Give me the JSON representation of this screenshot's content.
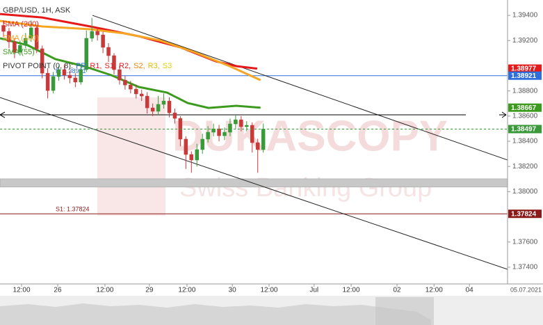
{
  "chart_data": {
    "type": "candlestick",
    "title": "GBP/USD, 1H, ASK",
    "watermark": {
      "title": "DUKASCOPY",
      "subtitle": "Swiss Banking Group"
    },
    "up_color": "#3a9a3a",
    "down_color": "#c83a3a",
    "open": [
      1.3932,
      1.39273,
      1.3919,
      1.39107,
      1.39162,
      1.39218,
      1.39301,
      1.39135,
      1.38941,
      1.38803,
      1.38914,
      1.38969,
      1.38925,
      1.38903,
      1.3887,
      1.38969,
      1.39218,
      1.39273,
      1.39245,
      1.39146,
      1.3908,
      1.38969,
      1.38886,
      1.38847,
      1.38814,
      1.38776,
      1.38759,
      1.38665,
      1.38638,
      1.38693,
      1.3872,
      1.38626,
      1.38582,
      1.38417,
      1.38295,
      1.38251,
      1.38334,
      1.38417,
      1.38472,
      1.38499,
      1.38444,
      1.38472,
      1.38538,
      1.38571,
      1.38516,
      1.38527,
      1.38389,
      1.38334
    ],
    "high": [
      1.3936,
      1.393,
      1.3922,
      1.392,
      1.3926,
      1.3936,
      1.3932,
      1.3916,
      1.3898,
      1.3895,
      1.39,
      1.3901,
      1.3896,
      1.3894,
      1.3901,
      1.3928,
      1.3938,
      1.393,
      1.3927,
      1.3918,
      1.391,
      1.39,
      1.3892,
      1.3888,
      1.3885,
      1.3881,
      1.3879,
      1.387,
      1.3876,
      1.3878,
      1.3875,
      1.3866,
      1.386,
      1.3844,
      1.3832,
      1.3838,
      1.3846,
      1.3852,
      1.3854,
      1.3853,
      1.3851,
      1.3858,
      1.3861,
      1.386,
      1.3856,
      1.3855,
      1.3842,
      1.3854
    ],
    "low": [
      1.3923,
      1.3914,
      1.3906,
      1.3908,
      1.3914,
      1.3919,
      1.391,
      1.389,
      1.3874,
      1.3878,
      1.3888,
      1.3889,
      1.3886,
      1.3883,
      1.3885,
      1.3895,
      1.3919,
      1.392,
      1.391,
      1.3903,
      1.3893,
      1.3885,
      1.3881,
      1.3878,
      1.3874,
      1.3872,
      1.3862,
      1.386,
      1.3861,
      1.3866,
      1.3859,
      1.3854,
      1.3836,
      1.3818,
      1.3815,
      1.382,
      1.383,
      1.3839,
      1.3844,
      1.384,
      1.3841,
      1.3844,
      1.385,
      1.3848,
      1.3848,
      1.3831,
      1.3815,
      1.3831
    ],
    "close": [
      1.39273,
      1.3919,
      1.39107,
      1.39162,
      1.39218,
      1.39301,
      1.39135,
      1.38941,
      1.38803,
      1.38914,
      1.38969,
      1.38925,
      1.38903,
      1.3887,
      1.38969,
      1.39218,
      1.39273,
      1.39245,
      1.39146,
      1.3908,
      1.38969,
      1.38886,
      1.38847,
      1.38814,
      1.38776,
      1.38759,
      1.38665,
      1.38638,
      1.38693,
      1.3872,
      1.38626,
      1.38582,
      1.38417,
      1.38295,
      1.38251,
      1.38334,
      1.38417,
      1.38472,
      1.38499,
      1.38444,
      1.38472,
      1.38538,
      1.38571,
      1.38516,
      1.38527,
      1.38389,
      1.38334,
      1.38497
    ],
    "series": [
      {
        "name": "SMA (200)",
        "color": "#e41a1a",
        "x": [
          -0.63,
          7,
          15.7,
          24.5,
          32,
          38.4,
          42.1,
          45.9
        ],
        "values": [
          1.39411,
          1.39383,
          1.39312,
          1.39234,
          1.39146,
          1.39035,
          1.38997,
          1.38977
        ]
      },
      {
        "name": "SMA (100)",
        "color": "#f5a623",
        "x": [
          -0.63,
          7,
          15.7,
          22,
          28.3,
          34.6,
          40.9,
          46.5
        ],
        "values": [
          1.39356,
          1.39312,
          1.3929,
          1.39256,
          1.39201,
          1.39107,
          1.38997,
          1.38886
        ]
      },
      {
        "name": "SMA (55)",
        "color": "#3c9a1e",
        "x": [
          -0.63,
          4.4,
          9.4,
          14.5,
          19.5,
          24.5,
          29.6,
          33.3,
          37.1,
          42.1,
          46.5
        ],
        "values": [
          1.39218,
          1.39162,
          1.39052,
          1.38997,
          1.38925,
          1.38831,
          1.38787,
          1.38704,
          1.38665,
          1.38682,
          1.38667
        ]
      }
    ],
    "pivot_legend": {
      "title": "PIVOT POINT (0, 8):",
      "items": [
        {
          "label": "PP,",
          "color": "#2f6fdc"
        },
        {
          "label": "R1,",
          "color": "#e41a1a"
        },
        {
          "label": "S1,",
          "color": "#e41a1a"
        },
        {
          "label": "R2,",
          "color": "#e41a1a"
        },
        {
          "label": "S2,",
          "color": "#f08000"
        },
        {
          "label": "R3,",
          "color": "#e8b800"
        },
        {
          "label": "S3",
          "color": "#e8d000"
        }
      ]
    },
    "pivots": [
      {
        "label": "P: 1.38921",
        "value": 1.38921,
        "color": "#2f6fdc"
      },
      {
        "label": "S1: 1.37824",
        "value": 1.37824,
        "color": "#8b1a1a"
      }
    ],
    "horizontal_lines": [
      {
        "value": 1.3861,
        "color": "#000000"
      }
    ],
    "zones": [
      {
        "from": 1.38036,
        "to": 1.38102,
        "color": "#c8c8c8"
      }
    ],
    "trendlines": [
      {
        "x": [
          16.1,
          91.2
        ],
        "values": [
          1.394,
          1.38251
        ]
      },
      {
        "x": [
          -0.63,
          91.2
        ],
        "values": [
          1.38748,
          1.37383
        ]
      }
    ],
    "xlim": [
      -0.63,
      91.2
    ],
    "ylim": [
      1.37267,
      1.39522
    ],
    "xticks": [
      {
        "value": 3.27,
        "label": "12:00"
      },
      {
        "value": 9.81,
        "label": "26"
      },
      {
        "value": 18.36,
        "label": "12:00"
      },
      {
        "value": 26.4,
        "label": "29"
      },
      {
        "value": 33.2,
        "label": "12:00"
      },
      {
        "value": 41.4,
        "label": "30"
      },
      {
        "value": 48.05,
        "label": "12:00"
      },
      {
        "value": 56.2,
        "label": "Jul"
      },
      {
        "value": 62.9,
        "label": "12:00"
      },
      {
        "value": 71.2,
        "label": "02"
      },
      {
        "value": 77.9,
        "label": "12:00"
      },
      {
        "value": 84.3,
        "label": "04"
      }
    ],
    "date_label": "05.07.2021",
    "yticks": [
      {
        "value": 1.394,
        "label": "1.39400"
      },
      {
        "value": 1.392,
        "label": "1.39200"
      },
      {
        "value": 1.388,
        "label": "1.38800"
      },
      {
        "value": 1.386,
        "label": "1.38600"
      },
      {
        "value": 1.384,
        "label": "1.38400"
      },
      {
        "value": 1.382,
        "label": "1.38200"
      },
      {
        "value": 1.38,
        "label": "1.38000"
      },
      {
        "value": 1.376,
        "label": "1.37600"
      },
      {
        "value": 1.374,
        "label": "1.37400"
      }
    ],
    "grid": false
  }
}
